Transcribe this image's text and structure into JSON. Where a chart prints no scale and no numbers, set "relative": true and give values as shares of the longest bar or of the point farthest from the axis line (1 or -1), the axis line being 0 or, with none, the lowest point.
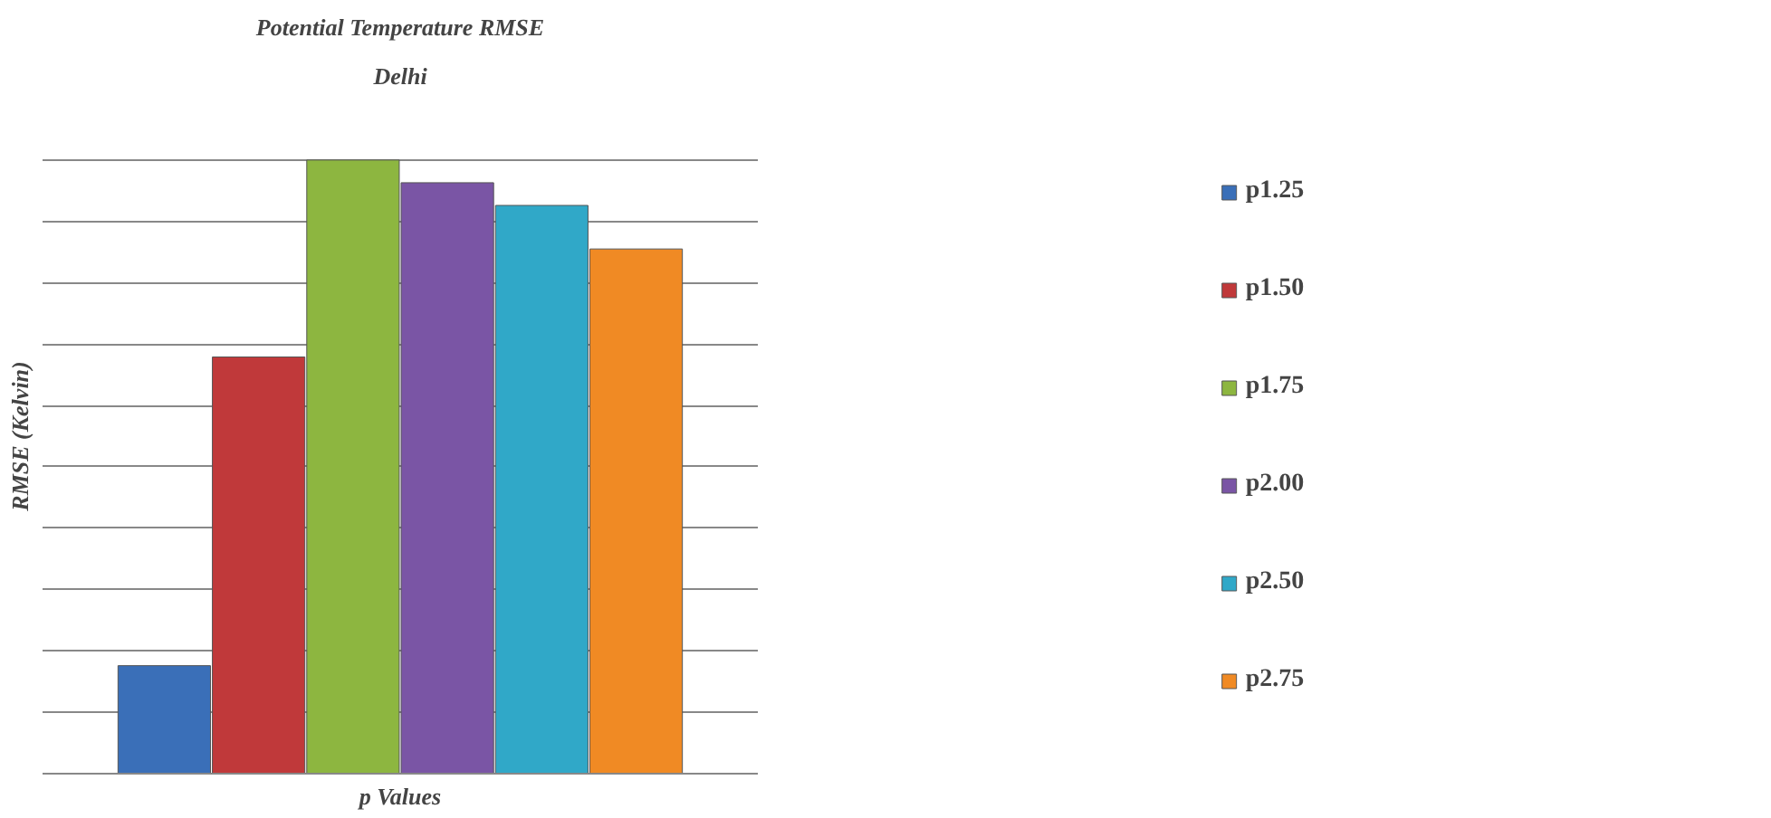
{
  "chart_data": {
    "type": "bar",
    "title": "Potential Temperature RMSE",
    "subtitle": "Delhi",
    "xlabel": "p Values",
    "ylabel": "RMSE (Kelvin)",
    "relative": true,
    "categories": [
      null
    ],
    "series": [
      {
        "name": "p1.25",
        "color": "#3a6fb8",
        "values": [
          0.176
        ]
      },
      {
        "name": "p1.50",
        "color": "#c0393a",
        "values": [
          0.679
        ]
      },
      {
        "name": "p1.75",
        "color": "#8db640",
        "values": [
          1
        ]
      },
      {
        "name": "p2.00",
        "color": "#7a55a5",
        "values": [
          0.963
        ]
      },
      {
        "name": "p2.50",
        "color": "#30a8c8",
        "values": [
          0.926
        ]
      },
      {
        "name": "p2.75",
        "color": "#f08a24",
        "values": [
          0.855
        ]
      }
    ],
    "grid": "y",
    "legend": "right"
  }
}
